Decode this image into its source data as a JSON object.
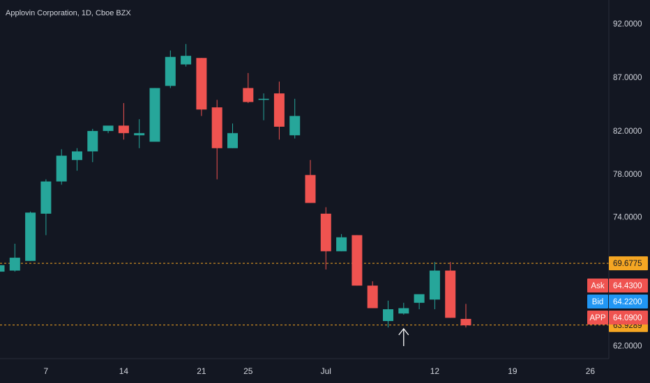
{
  "header": {
    "symbol_title": "Applovin Corporation, 1D, Cboe BZX"
  },
  "colors": {
    "background": "#131722",
    "up": "#26a69a",
    "down": "#ef5350",
    "axis_text": "#d1d4dc",
    "level_line": "#f5a623",
    "bid_badge": "#2196f3",
    "ask_badge": "#ef5350",
    "last_badge": "#ef5350",
    "level_badge": "#f5a623"
  },
  "chart_data": {
    "type": "candlestick",
    "title": "Applovin Corporation, 1D, Cboe BZX",
    "ylim": [
      60.8,
      94.2
    ],
    "y_ticks": [
      "92.0000",
      "87.0000",
      "82.0000",
      "78.0000",
      "74.0000",
      "62.0000"
    ],
    "x_ticks": [
      "7",
      "14",
      "21",
      "25",
      "Jul",
      "12",
      "19",
      "26"
    ],
    "x_tick_index": [
      3,
      8,
      13,
      16,
      21,
      28,
      33,
      38
    ],
    "bar_count": 41,
    "candles": [
      {
        "o": 68.9,
        "h": 69.7,
        "l": 68.9,
        "c": 69.5
      },
      {
        "o": 69.0,
        "h": 71.5,
        "l": 68.9,
        "c": 70.2
      },
      {
        "o": 69.9,
        "h": 74.5,
        "l": 69.9,
        "c": 74.4
      },
      {
        "o": 74.3,
        "h": 77.5,
        "l": 72.3,
        "c": 77.3
      },
      {
        "o": 77.3,
        "h": 80.3,
        "l": 77.0,
        "c": 79.7
      },
      {
        "o": 79.3,
        "h": 80.4,
        "l": 78.3,
        "c": 80.1
      },
      {
        "o": 80.1,
        "h": 82.2,
        "l": 79.1,
        "c": 82.0
      },
      {
        "o": 82.0,
        "h": 82.4,
        "l": 81.8,
        "c": 82.5
      },
      {
        "o": 82.5,
        "h": 84.6,
        "l": 81.2,
        "c": 81.8
      },
      {
        "o": 81.6,
        "h": 83.1,
        "l": 80.4,
        "c": 81.8
      },
      {
        "o": 81.0,
        "h": 86.0,
        "l": 81.0,
        "c": 86.0
      },
      {
        "o": 86.2,
        "h": 89.5,
        "l": 86.0,
        "c": 88.9
      },
      {
        "o": 88.2,
        "h": 90.1,
        "l": 88.0,
        "c": 89.0
      },
      {
        "o": 88.8,
        "h": 88.8,
        "l": 83.4,
        "c": 84.0
      },
      {
        "o": 84.2,
        "h": 84.9,
        "l": 77.5,
        "c": 80.4
      },
      {
        "o": 80.4,
        "h": 82.7,
        "l": 80.4,
        "c": 81.8
      },
      {
        "o": 86.0,
        "h": 87.4,
        "l": 84.6,
        "c": 84.7
      },
      {
        "o": 84.9,
        "h": 85.5,
        "l": 83.0,
        "c": 85.0
      },
      {
        "o": 85.5,
        "h": 86.6,
        "l": 81.2,
        "c": 82.4
      },
      {
        "o": 81.6,
        "h": 85.0,
        "l": 81.3,
        "c": 83.4
      },
      {
        "o": 77.9,
        "h": 79.3,
        "l": 75.3,
        "c": 75.3
      },
      {
        "o": 74.3,
        "h": 74.9,
        "l": 69.1,
        "c": 70.8
      },
      {
        "o": 70.8,
        "h": 72.4,
        "l": 70.8,
        "c": 72.1
      },
      {
        "o": 72.3,
        "h": 72.3,
        "l": 67.6,
        "c": 67.6
      },
      {
        "o": 67.6,
        "h": 68.0,
        "l": 65.5,
        "c": 65.5
      },
      {
        "o": 64.3,
        "h": 66.2,
        "l": 63.7,
        "c": 65.4
      },
      {
        "o": 65.0,
        "h": 66.0,
        "l": 64.9,
        "c": 65.5
      },
      {
        "o": 66.0,
        "h": 66.8,
        "l": 65.4,
        "c": 66.8
      },
      {
        "o": 66.3,
        "h": 69.8,
        "l": 65.4,
        "c": 69.0
      },
      {
        "o": 69.0,
        "h": 69.8,
        "l": 64.6,
        "c": 64.6
      },
      {
        "o": 64.5,
        "h": 65.9,
        "l": 63.7,
        "c": 63.9
      }
    ],
    "price_levels": [
      {
        "label": "69.6775",
        "value": 69.6775,
        "style": "dashed"
      },
      {
        "label": "63.9289",
        "value": 63.9289,
        "style": "dashed"
      }
    ],
    "price_badges": [
      {
        "name": "Ask",
        "value": "64.4300"
      },
      {
        "name": "Bid",
        "value": "64.2200"
      },
      {
        "name": "APP",
        "value": "64.0900"
      }
    ],
    "annotation": {
      "type": "arrow-up",
      "bar_index": 26
    }
  }
}
